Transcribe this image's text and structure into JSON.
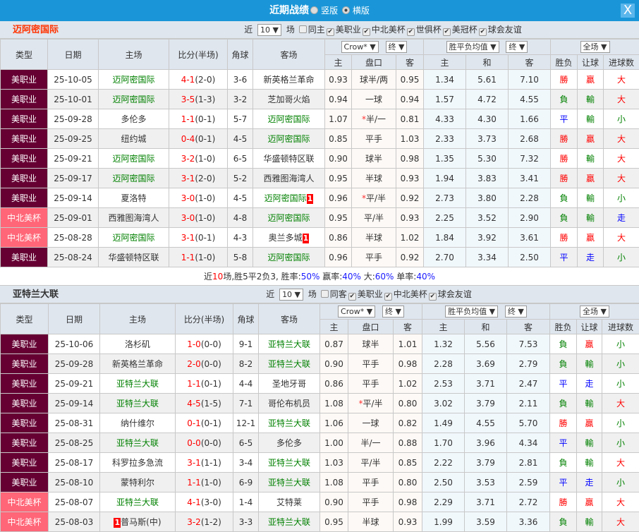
{
  "titlebar": {
    "title": "近期战绩",
    "option1": "竖版",
    "option2": "横版",
    "selected": "横版",
    "close": "X"
  },
  "colors": {
    "mls": "#660033",
    "concacaf": "#ff6677",
    "highlight": "#008000",
    "win": "#ff0000",
    "lose": "#008000",
    "draw": "#0000ff"
  },
  "headers": {
    "type": "类型",
    "date": "日期",
    "home": "主场",
    "score": "比分(半场)",
    "corner": "角球",
    "away": "客场",
    "company": "Crow*",
    "stage": "终",
    "avg": "胜平负均值",
    "stage2": "终",
    "scope": "全场",
    "o_home": "主",
    "line": "盘口",
    "o_away": "客",
    "e_home": "主",
    "e_draw": "和",
    "e_away": "客",
    "wl": "胜负",
    "hc": "让球",
    "ou": "进球数"
  },
  "sections": [
    {
      "team": "迈阿密国际",
      "near": "近",
      "count": "10",
      "unit": "场",
      "same": "同主",
      "filters": [
        "美职业",
        "中北美杯",
        "世俱杯",
        "美冠杯",
        "球会友谊"
      ],
      "rows": [
        {
          "type": "美职业",
          "date": "25-10-05",
          "home": "迈阿密国际",
          "hh": true,
          "home_card": "",
          "score": "4-1",
          "half": "(2-0)",
          "corner": "3-6",
          "away": "新英格兰革命",
          "ah": false,
          "away_card": "",
          "oh": "0.93",
          "line": "球半/两",
          "star": false,
          "oa": "0.95",
          "eh": "1.34",
          "ed": "5.61",
          "ea": "7.10",
          "wl": "勝",
          "hc": "贏",
          "ou": "大"
        },
        {
          "type": "美职业",
          "date": "25-10-01",
          "home": "迈阿密国际",
          "hh": true,
          "home_card": "",
          "score": "3-5",
          "half": "(1-3)",
          "corner": "3-2",
          "away": "芝加哥火焰",
          "ah": false,
          "away_card": "",
          "oh": "0.94",
          "line": "一球",
          "star": false,
          "oa": "0.94",
          "eh": "1.57",
          "ed": "4.72",
          "ea": "4.55",
          "wl": "負",
          "hc": "輸",
          "ou": "大"
        },
        {
          "type": "美职业",
          "date": "25-09-28",
          "home": "多伦多",
          "hh": false,
          "home_card": "",
          "score": "1-1",
          "half": "(0-1)",
          "corner": "5-7",
          "away": "迈阿密国际",
          "ah": true,
          "away_card": "",
          "oh": "1.07",
          "line": "半/一",
          "star": true,
          "oa": "0.81",
          "eh": "4.33",
          "ed": "4.30",
          "ea": "1.66",
          "wl": "平",
          "hc": "輸",
          "ou": "小"
        },
        {
          "type": "美职业",
          "date": "25-09-25",
          "home": "纽约城",
          "hh": false,
          "home_card": "",
          "score": "0-4",
          "half": "(0-1)",
          "corner": "4-5",
          "away": "迈阿密国际",
          "ah": true,
          "away_card": "",
          "oh": "0.85",
          "line": "平手",
          "star": false,
          "oa": "1.03",
          "eh": "2.33",
          "ed": "3.73",
          "ea": "2.68",
          "wl": "勝",
          "hc": "贏",
          "ou": "大"
        },
        {
          "type": "美职业",
          "date": "25-09-21",
          "home": "迈阿密国际",
          "hh": true,
          "home_card": "",
          "score": "3-2",
          "half": "(1-0)",
          "corner": "6-5",
          "away": "华盛顿特区联",
          "ah": false,
          "away_card": "",
          "oh": "0.90",
          "line": "球半",
          "star": false,
          "oa": "0.98",
          "eh": "1.35",
          "ed": "5.30",
          "ea": "7.32",
          "wl": "勝",
          "hc": "輸",
          "ou": "大"
        },
        {
          "type": "美职业",
          "date": "25-09-17",
          "home": "迈阿密国际",
          "hh": true,
          "home_card": "",
          "score": "3-1",
          "half": "(2-0)",
          "corner": "5-2",
          "away": "西雅图海湾人",
          "ah": false,
          "away_card": "",
          "oh": "0.95",
          "line": "半球",
          "star": false,
          "oa": "0.93",
          "eh": "1.94",
          "ed": "3.83",
          "ea": "3.41",
          "wl": "勝",
          "hc": "贏",
          "ou": "大"
        },
        {
          "type": "美职业",
          "date": "25-09-14",
          "home": "夏洛特",
          "hh": false,
          "home_card": "",
          "score": "3-0",
          "half": "(1-0)",
          "corner": "4-5",
          "away": "迈阿密国际",
          "ah": true,
          "away_card": "1",
          "oh": "0.96",
          "line": "平/半",
          "star": true,
          "oa": "0.92",
          "eh": "2.73",
          "ed": "3.80",
          "ea": "2.28",
          "wl": "負",
          "hc": "輸",
          "ou": "小"
        },
        {
          "type": "中北美杯",
          "date": "25-09-01",
          "home": "西雅图海湾人",
          "hh": false,
          "home_card": "",
          "score": "3-0",
          "half": "(1-0)",
          "corner": "4-8",
          "away": "迈阿密国际",
          "ah": true,
          "away_card": "",
          "oh": "0.95",
          "line": "平/半",
          "star": false,
          "oa": "0.93",
          "eh": "2.25",
          "ed": "3.52",
          "ea": "2.90",
          "wl": "負",
          "hc": "輸",
          "ou": "走"
        },
        {
          "type": "中北美杯",
          "date": "25-08-28",
          "home": "迈阿密国际",
          "hh": true,
          "home_card": "",
          "score": "3-1",
          "half": "(0-1)",
          "corner": "4-3",
          "away": "奥兰多城",
          "ah": false,
          "away_card": "1",
          "oh": "0.86",
          "line": "半球",
          "star": false,
          "oa": "1.02",
          "eh": "1.84",
          "ed": "3.92",
          "ea": "3.61",
          "wl": "勝",
          "hc": "贏",
          "ou": "大"
        },
        {
          "type": "美职业",
          "date": "25-08-24",
          "home": "华盛顿特区联",
          "hh": false,
          "home_card": "",
          "score": "1-1",
          "half": "(1-0)",
          "corner": "5-8",
          "away": "迈阿密国际",
          "ah": true,
          "away_card": "",
          "oh": "0.96",
          "line": "平手",
          "star": false,
          "oa": "0.92",
          "eh": "2.70",
          "ed": "3.34",
          "ea": "2.50",
          "wl": "平",
          "hc": "走",
          "ou": "小"
        }
      ],
      "summary": {
        "a": "近",
        "n": "10",
        "b": "场,胜5平2负3, 胜率:",
        "win": "50%",
        "c": " 赢率:",
        "hcr": "40%",
        "d": " 大:",
        "big": "60%",
        "e": " 单率:",
        "odd": "40%"
      }
    },
    {
      "team": "亚特兰大联",
      "near": "近",
      "count": "10",
      "unit": "场",
      "same": "同客",
      "filters": [
        "美职业",
        "中北美杯",
        "球会友谊"
      ],
      "rows": [
        {
          "type": "美职业",
          "date": "25-10-06",
          "home": "洛杉矶",
          "hh": false,
          "home_card": "",
          "score": "1-0",
          "half": "(0-0)",
          "corner": "9-1",
          "away": "亚特兰大联",
          "ah": true,
          "away_card": "",
          "oh": "0.87",
          "line": "球半",
          "star": false,
          "oa": "1.01",
          "eh": "1.32",
          "ed": "5.56",
          "ea": "7.53",
          "wl": "負",
          "hc": "贏",
          "ou": "小"
        },
        {
          "type": "美职业",
          "date": "25-09-28",
          "home": "新英格兰革命",
          "hh": false,
          "home_card": "",
          "score": "2-0",
          "half": "(0-0)",
          "corner": "8-2",
          "away": "亚特兰大联",
          "ah": true,
          "away_card": "",
          "oh": "0.90",
          "line": "平手",
          "star": false,
          "oa": "0.98",
          "eh": "2.28",
          "ed": "3.69",
          "ea": "2.79",
          "wl": "負",
          "hc": "輸",
          "ou": "小"
        },
        {
          "type": "美职业",
          "date": "25-09-21",
          "home": "亚特兰大联",
          "hh": true,
          "home_card": "",
          "score": "1-1",
          "half": "(0-1)",
          "corner": "4-4",
          "away": "圣地牙哥",
          "ah": false,
          "away_card": "",
          "oh": "0.86",
          "line": "平手",
          "star": false,
          "oa": "1.02",
          "eh": "2.53",
          "ed": "3.71",
          "ea": "2.47",
          "wl": "平",
          "hc": "走",
          "ou": "小"
        },
        {
          "type": "美职业",
          "date": "25-09-14",
          "home": "亚特兰大联",
          "hh": true,
          "home_card": "",
          "score": "4-5",
          "half": "(1-5)",
          "corner": "7-1",
          "away": "哥伦布机员",
          "ah": false,
          "away_card": "",
          "oh": "1.08",
          "line": "平/半",
          "star": true,
          "oa": "0.80",
          "eh": "3.02",
          "ed": "3.79",
          "ea": "2.11",
          "wl": "負",
          "hc": "輸",
          "ou": "大"
        },
        {
          "type": "美职业",
          "date": "25-08-31",
          "home": "纳什维尔",
          "hh": false,
          "home_card": "",
          "score": "0-1",
          "half": "(0-1)",
          "corner": "12-1",
          "away": "亚特兰大联",
          "ah": true,
          "away_card": "",
          "oh": "1.06",
          "line": "一球",
          "star": false,
          "oa": "0.82",
          "eh": "1.49",
          "ed": "4.55",
          "ea": "5.70",
          "wl": "勝",
          "hc": "贏",
          "ou": "小"
        },
        {
          "type": "美职业",
          "date": "25-08-25",
          "home": "亚特兰大联",
          "hh": true,
          "home_card": "",
          "score": "0-0",
          "half": "(0-0)",
          "corner": "6-5",
          "away": "多伦多",
          "ah": false,
          "away_card": "",
          "oh": "1.00",
          "line": "半/一",
          "star": false,
          "oa": "0.88",
          "eh": "1.70",
          "ed": "3.96",
          "ea": "4.34",
          "wl": "平",
          "hc": "輸",
          "ou": "小"
        },
        {
          "type": "美职业",
          "date": "25-08-17",
          "home": "科罗拉多急流",
          "hh": false,
          "home_card": "",
          "score": "3-1",
          "half": "(1-1)",
          "corner": "3-4",
          "away": "亚特兰大联",
          "ah": true,
          "away_card": "",
          "oh": "1.03",
          "line": "平/半",
          "star": false,
          "oa": "0.85",
          "eh": "2.22",
          "ed": "3.79",
          "ea": "2.81",
          "wl": "負",
          "hc": "輸",
          "ou": "大"
        },
        {
          "type": "美职业",
          "date": "25-08-10",
          "home": "蒙特利尔",
          "hh": false,
          "home_card": "",
          "score": "1-1",
          "half": "(1-0)",
          "corner": "6-9",
          "away": "亚特兰大联",
          "ah": true,
          "away_card": "",
          "oh": "1.08",
          "line": "平手",
          "star": false,
          "oa": "0.80",
          "eh": "2.50",
          "ed": "3.53",
          "ea": "2.59",
          "wl": "平",
          "hc": "走",
          "ou": "小"
        },
        {
          "type": "中北美杯",
          "date": "25-08-07",
          "home": "亚特兰大联",
          "hh": true,
          "home_card": "",
          "score": "4-1",
          "half": "(3-0)",
          "corner": "1-4",
          "away": "艾特莱",
          "ah": false,
          "away_card": "",
          "oh": "0.90",
          "line": "平手",
          "star": false,
          "oa": "0.98",
          "eh": "2.29",
          "ed": "3.71",
          "ea": "2.72",
          "wl": "勝",
          "hc": "贏",
          "ou": "大"
        },
        {
          "type": "中北美杯",
          "date": "25-08-03",
          "home": "普马斯(中)",
          "hh": false,
          "home_card": "1",
          "score": "3-2",
          "half": "(1-2)",
          "corner": "3-3",
          "away": "亚特兰大联",
          "ah": true,
          "away_card": "",
          "oh": "0.95",
          "line": "半球",
          "star": false,
          "oa": "0.93",
          "eh": "1.99",
          "ed": "3.59",
          "ea": "3.36",
          "wl": "負",
          "hc": "輸",
          "ou": "大"
        }
      ]
    }
  ]
}
